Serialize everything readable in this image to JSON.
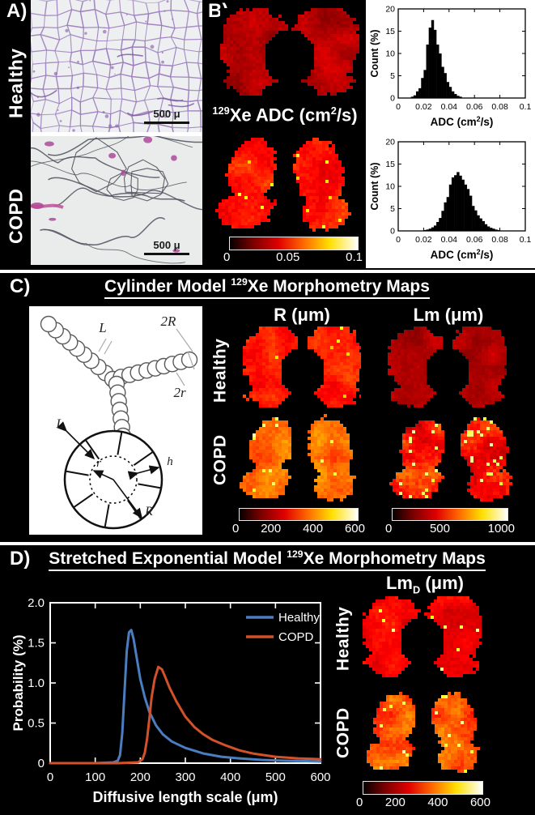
{
  "figure": {
    "panels": {
      "a": "A)",
      "b": "B)",
      "c": "C)",
      "d": "D)"
    }
  },
  "panel_a": {
    "row_labels": [
      "Healthy",
      "COPD"
    ],
    "scale_bar_label": "500 μ"
  },
  "panel_b": {
    "title": {
      "sup1": "129",
      "mid": "Xe ADC (cm",
      "sup2": "2",
      "post": "/s)"
    },
    "colorbar_ticks": [
      "0",
      "0.05",
      "0.1"
    ]
  },
  "panel_c": {
    "title": {
      "pre": "Cylinder Model ",
      "sup": "129",
      "post": "Xe Morphometry Maps"
    },
    "col_headers": [
      "R (μm)",
      "Lm (μm)"
    ],
    "row_labels": [
      "Healthy",
      "COPD"
    ],
    "diagram_labels": {
      "L_top": "L",
      "twoR": "2R",
      "twor": "2r",
      "L": "L",
      "r": "r",
      "h": "h",
      "R": "R"
    },
    "colorbar_r_ticks": [
      "0",
      "200",
      "400",
      "600"
    ],
    "colorbar_lm_ticks": [
      "0",
      "500",
      "1000"
    ]
  },
  "panel_d": {
    "title": {
      "pre": "Stretched Exponential Model ",
      "sup": "129",
      "post": "Xe Morphometry Maps"
    },
    "map_header": {
      "pre": "Lm",
      "sub": "D",
      "post": " (μm)"
    },
    "row_labels": [
      "Healthy",
      "COPD"
    ],
    "colorbar_ticks": [
      "0",
      "200",
      "400",
      "600"
    ]
  },
  "colors": {
    "healthy_line": "#4a7ec0",
    "copd_line": "#d2512a",
    "hot_scale": [
      "#000000",
      "#ff0000",
      "#ffff00",
      "#ffffff"
    ]
  },
  "lung_maps": {
    "map-b-healthy": {
      "shape": "coronal",
      "base": 0.3,
      "spread": 0.06,
      "bright": 0.0,
      "bright_val": 0.7,
      "seed": 11
    },
    "map-b-copd": {
      "shape": "copd",
      "base": 0.47,
      "spread": 0.07,
      "bright": 0.02,
      "bright_val": 0.7,
      "seed": 22
    },
    "map-c-r-healthy": {
      "shape": "coronal",
      "base": 0.45,
      "spread": 0.06,
      "bright": 0.01,
      "bright_val": 0.65,
      "seed": 33
    },
    "map-c-lm-healthy": {
      "shape": "coronal",
      "base": 0.29,
      "spread": 0.05,
      "bright": 0.0,
      "bright_val": 0.6,
      "seed": 44
    },
    "map-c-r-copd": {
      "shape": "copd",
      "base": 0.58,
      "spread": 0.07,
      "bright": 0.02,
      "bright_val": 0.8,
      "seed": 55
    },
    "map-c-lm-copd": {
      "shape": "copd",
      "base": 0.45,
      "spread": 0.1,
      "bright": 0.06,
      "bright_val": 0.8,
      "seed": 66
    },
    "map-d-lmd-healthy": {
      "shape": "coronal",
      "base": 0.41,
      "spread": 0.06,
      "bright": 0.015,
      "bright_val": 0.78,
      "seed": 77
    },
    "map-d-lmd-copd": {
      "shape": "copd",
      "base": 0.53,
      "spread": 0.08,
      "bright": 0.03,
      "bright_val": 0.8,
      "seed": 88
    }
  },
  "chart_data": [
    {
      "id": "adc_histogram_healthy",
      "type": "bar",
      "ylabel": "Count (%)",
      "xlabel_parts": {
        "pre": "ADC (cm",
        "sup": "2",
        "post": "/s)"
      },
      "xlim": [
        0,
        0.1
      ],
      "ylim": [
        0,
        20
      ],
      "xticks": [
        0,
        0.02,
        0.04,
        0.06,
        0.08,
        0.1
      ],
      "xtick_labels": [
        "0",
        "0.02",
        "0.04",
        "0.06",
        "0.08",
        "0.1"
      ],
      "yticks": [
        0,
        5,
        10,
        15,
        20
      ],
      "bin_start": 0.01,
      "bin_width": 0.002,
      "values": [
        0.3,
        0.6,
        1.5,
        2.2,
        4.5,
        6.3,
        12.0,
        15.8,
        17.5,
        15.3,
        12.0,
        10.0,
        7.0,
        5.6,
        3.6,
        2.5,
        1.5,
        0.9,
        0.5,
        0.3
      ]
    },
    {
      "id": "adc_histogram_copd",
      "type": "bar",
      "ylabel": "Count (%)",
      "xlabel_parts": {
        "pre": "ADC (cm",
        "sup": "2",
        "post": "/s)"
      },
      "xlim": [
        0,
        0.1
      ],
      "ylim": [
        0,
        20
      ],
      "xticks": [
        0,
        0.02,
        0.04,
        0.06,
        0.08,
        0.1
      ],
      "xtick_labels": [
        "0",
        "0.02",
        "0.04",
        "0.06",
        "0.08",
        "0.1"
      ],
      "yticks": [
        0,
        5,
        10,
        15,
        20
      ],
      "bin_start": 0.02,
      "bin_width": 0.002,
      "values": [
        0.2,
        0.3,
        0.5,
        0.8,
        1.2,
        2.0,
        2.9,
        4.5,
        6.4,
        7.6,
        10.4,
        12.0,
        12.5,
        13.2,
        12.4,
        11.5,
        10.4,
        9.4,
        7.9,
        5.6,
        4.6,
        3.5,
        2.8,
        2.2,
        1.5,
        1.0,
        0.7,
        0.5,
        0.3,
        0.2
      ]
    },
    {
      "id": "diffusive_length_distribution",
      "type": "line",
      "xlabel": "Diffusive length scale (μm)",
      "ylabel": "Probability (%)",
      "xlim": [
        0,
        600
      ],
      "ylim": [
        0,
        2
      ],
      "xticks": [
        0,
        100,
        200,
        300,
        400,
        500,
        600
      ],
      "xtick_labels": [
        "0",
        "100",
        "200",
        "300",
        "400",
        "500",
        "600"
      ],
      "yticks": [
        0,
        0.5,
        1.0,
        1.5,
        2.0
      ],
      "ytick_labels": [
        "0",
        "0.5",
        "1.0",
        "1.5",
        "2.0"
      ],
      "legend_position": "top-right",
      "series": [
        {
          "name": "Healthy",
          "color": "#4a7ec0",
          "x": [
            0,
            100,
            140,
            150,
            155,
            160,
            165,
            170,
            175,
            180,
            185,
            190,
            200,
            210,
            220,
            235,
            250,
            270,
            300,
            340,
            380,
            420,
            470,
            520,
            600
          ],
          "y": [
            0,
            0,
            0.01,
            0.03,
            0.1,
            0.38,
            0.9,
            1.4,
            1.63,
            1.66,
            1.55,
            1.38,
            1.05,
            0.82,
            0.64,
            0.47,
            0.36,
            0.27,
            0.19,
            0.12,
            0.08,
            0.06,
            0.04,
            0.03,
            0.02
          ]
        },
        {
          "name": "COPD",
          "color": "#d2512a",
          "x": [
            0,
            150,
            195,
            205,
            210,
            215,
            220,
            225,
            232,
            240,
            248,
            255,
            265,
            280,
            300,
            320,
            340,
            360,
            390,
            420,
            450,
            500,
            550,
            600
          ],
          "y": [
            0,
            0,
            0.01,
            0.05,
            0.13,
            0.3,
            0.55,
            0.82,
            1.05,
            1.2,
            1.17,
            1.08,
            0.94,
            0.77,
            0.58,
            0.45,
            0.36,
            0.29,
            0.22,
            0.16,
            0.12,
            0.08,
            0.06,
            0.05
          ]
        }
      ]
    }
  ]
}
